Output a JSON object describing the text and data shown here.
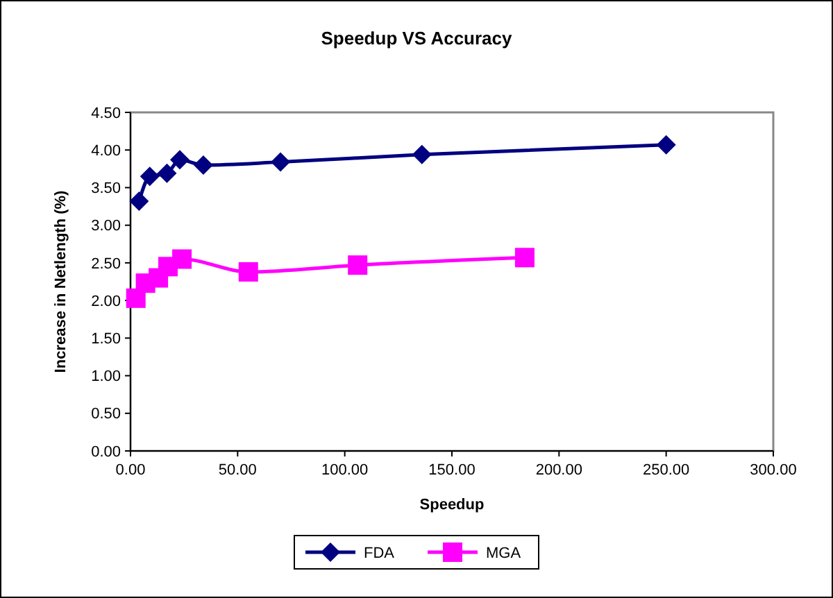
{
  "chart_data": {
    "type": "line",
    "title": "Speedup VS Accuracy",
    "xlabel": "Speedup",
    "ylabel": "Increase in Netlength (%)",
    "xlim": [
      0,
      300
    ],
    "xticks": [
      {
        "value": 0,
        "label": "0.00"
      },
      {
        "value": 50,
        "label": "50.00"
      },
      {
        "value": 100,
        "label": "100.00"
      },
      {
        "value": 150,
        "label": "150.00"
      },
      {
        "value": 200,
        "label": "200.00"
      },
      {
        "value": 250,
        "label": "250.00"
      },
      {
        "value": 300,
        "label": "300.00"
      }
    ],
    "ylim": [
      0,
      4.5
    ],
    "yticks": [
      {
        "value": 0,
        "label": "0.00"
      },
      {
        "value": 0.5,
        "label": "0.50"
      },
      {
        "value": 1,
        "label": "1.00"
      },
      {
        "value": 1.5,
        "label": "1.50"
      },
      {
        "value": 2,
        "label": "2.00"
      },
      {
        "value": 2.5,
        "label": "2.50"
      },
      {
        "value": 3,
        "label": "3.00"
      },
      {
        "value": 3.5,
        "label": "3.50"
      },
      {
        "value": 4,
        "label": "4.00"
      },
      {
        "value": 4.5,
        "label": "4.50"
      }
    ],
    "legend": "bottom",
    "grid": false,
    "series": [
      {
        "name": "FDA",
        "color": "#000080",
        "marker": "diamond",
        "x": [
          4,
          9,
          17,
          23,
          34,
          70,
          136,
          250
        ],
        "values": [
          3.32,
          3.65,
          3.69,
          3.87,
          3.8,
          3.84,
          3.94,
          4.07
        ]
      },
      {
        "name": "MGA",
        "color": "#ff00ff",
        "marker": "square",
        "x": [
          2.5,
          7,
          13,
          17.5,
          24,
          55,
          106,
          184
        ],
        "values": [
          2.03,
          2.23,
          2.3,
          2.45,
          2.55,
          2.38,
          2.47,
          2.57
        ]
      }
    ]
  }
}
